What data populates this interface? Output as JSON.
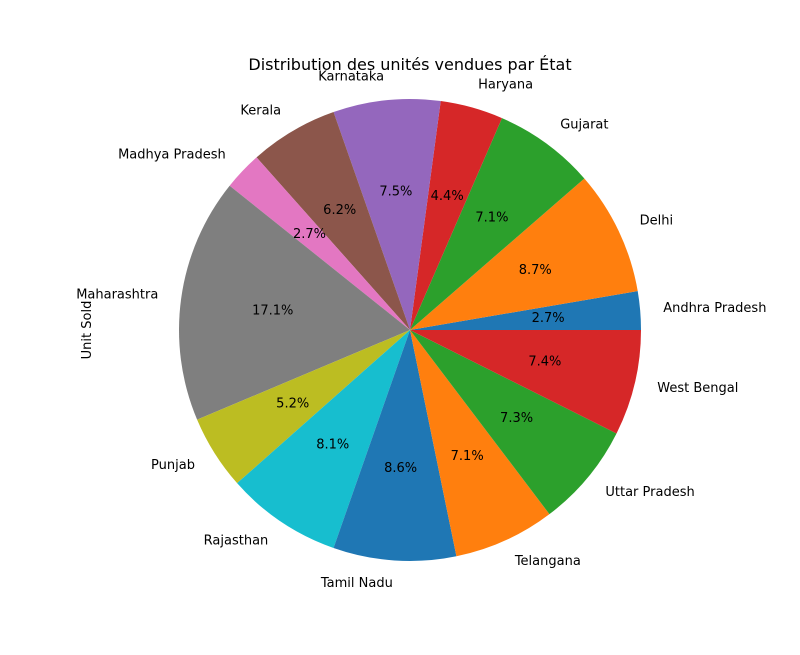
{
  "chart_data": {
    "type": "pie",
    "title": "Distribution des unités vendues par État",
    "ylabel": "Unit Sold",
    "start_angle_deg": 0,
    "direction": "counterclockwise",
    "slices": [
      {
        "label": "Andhra Pradesh",
        "percent": 2.7,
        "pct_label": "2.7%",
        "color": "#1f77b4"
      },
      {
        "label": "Delhi",
        "percent": 8.7,
        "pct_label": "8.7%",
        "color": "#ff7f0e"
      },
      {
        "label": "Gujarat",
        "percent": 7.1,
        "pct_label": "7.1%",
        "color": "#2ca02c"
      },
      {
        "label": "Haryana",
        "percent": 4.4,
        "pct_label": "4.4%",
        "color": "#d62728"
      },
      {
        "label": "Karnataka",
        "percent": 7.5,
        "pct_label": "7.5%",
        "color": "#9467bd"
      },
      {
        "label": "Kerala",
        "percent": 6.2,
        "pct_label": "6.2%",
        "color": "#8c564b"
      },
      {
        "label": "Madhya Pradesh",
        "percent": 2.7,
        "pct_label": "2.7%",
        "color": "#e377c2"
      },
      {
        "label": "Maharashtra",
        "percent": 17.1,
        "pct_label": "17.1%",
        "color": "#7f7f7f"
      },
      {
        "label": "Punjab",
        "percent": 5.2,
        "pct_label": "5.2%",
        "color": "#bcbd22"
      },
      {
        "label": "Rajasthan",
        "percent": 8.1,
        "pct_label": "8.1%",
        "color": "#17becf"
      },
      {
        "label": "Tamil Nadu",
        "percent": 8.6,
        "pct_label": "8.6%",
        "color": "#1f77b4"
      },
      {
        "label": "Telangana",
        "percent": 7.1,
        "pct_label": "7.1%",
        "color": "#ff7f0e"
      },
      {
        "label": "Uttar Pradesh",
        "percent": 7.3,
        "pct_label": "7.3%",
        "color": "#2ca02c"
      },
      {
        "label": "West Bengal",
        "percent": 7.4,
        "pct_label": "7.4%",
        "color": "#d62728"
      }
    ]
  }
}
